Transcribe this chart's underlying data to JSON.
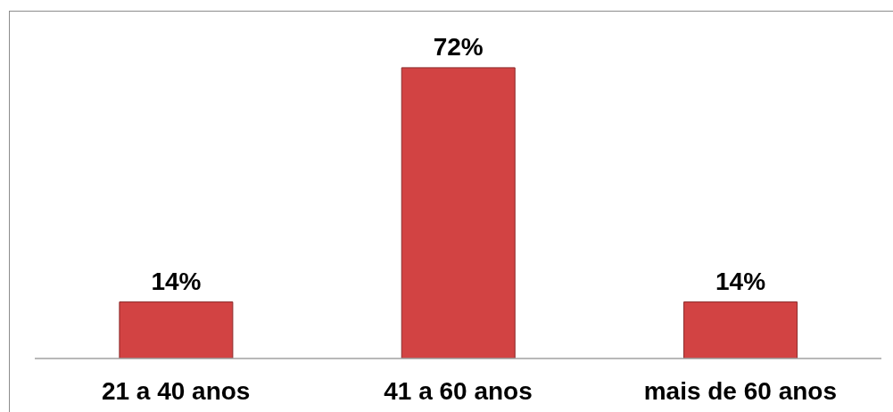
{
  "chart_data": {
    "type": "bar",
    "categories": [
      "21 a 40 anos",
      "41 a 60 anos",
      "mais de 60 anos"
    ],
    "values": [
      14,
      72,
      14
    ],
    "value_labels": [
      "14%",
      "72%",
      "14%"
    ],
    "color": "#d24343"
  }
}
